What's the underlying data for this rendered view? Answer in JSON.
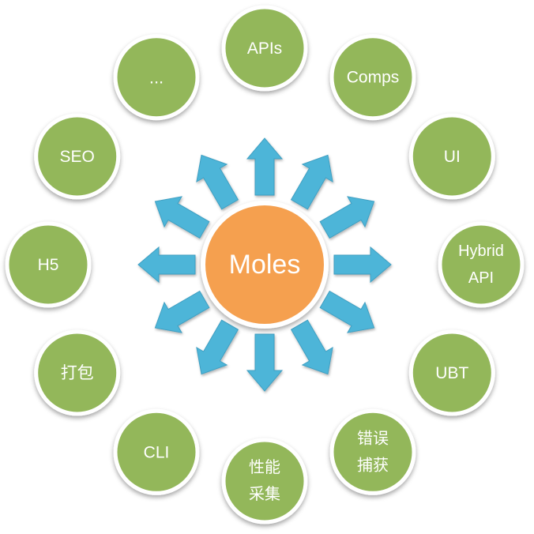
{
  "center": {
    "label": "Moles",
    "fill": "#f5a04f"
  },
  "colors": {
    "node_fill": "#93b75a",
    "node_ring": "#ffffff",
    "arrow_fill": "#4db5d8",
    "arrow_stroke": "#3f9fc2",
    "text": "#ffffff"
  },
  "nodes": [
    {
      "id": "apis",
      "label": "APIs",
      "angle": -90
    },
    {
      "id": "comps",
      "label": "Comps",
      "angle": -60
    },
    {
      "id": "ui",
      "label": "UI",
      "angle": -30
    },
    {
      "id": "hybrid",
      "label": "Hybrid\nAPI",
      "angle": 0
    },
    {
      "id": "ubt",
      "label": "UBT",
      "angle": 30
    },
    {
      "id": "error",
      "label": "错误\n捕获",
      "angle": 60
    },
    {
      "id": "perf",
      "label": "性能\n采集",
      "angle": 90
    },
    {
      "id": "cli",
      "label": "CLI",
      "angle": 120
    },
    {
      "id": "pack",
      "label": "打包",
      "angle": 150
    },
    {
      "id": "h5",
      "label": "H5",
      "angle": 180
    },
    {
      "id": "seo",
      "label": "SEO",
      "angle": 210
    },
    {
      "id": "more",
      "label": "...",
      "angle": 240
    }
  ]
}
